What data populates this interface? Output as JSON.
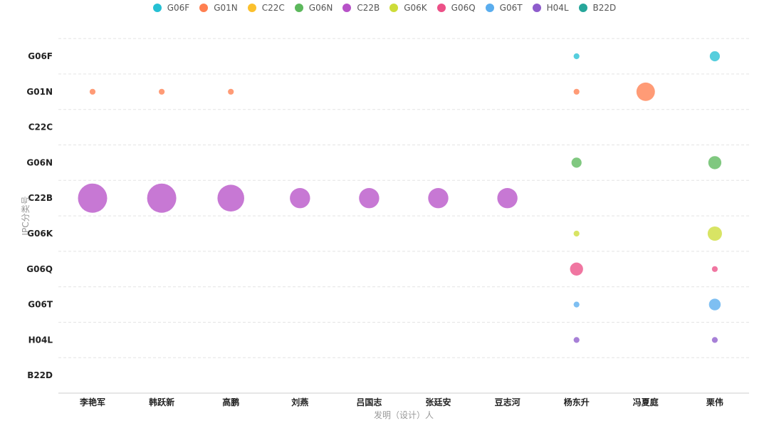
{
  "chart_data": {
    "type": "scatter",
    "subtype": "bubble",
    "xlabel": "发明（设计）人",
    "ylabel": "IPC分类号",
    "x_categories": [
      "李艳军",
      "韩跃新",
      "高鹏",
      "刘燕",
      "吕国志",
      "张廷安",
      "豆志河",
      "杨东升",
      "冯夏庭",
      "栗伟"
    ],
    "y_categories": [
      "G06F",
      "G01N",
      "C22C",
      "G06N",
      "C22B",
      "G06K",
      "G06Q",
      "G06T",
      "H04L",
      "B22D"
    ],
    "legend_position": "top-center",
    "grid": "horizontal-dashed",
    "series": [
      {
        "name": "G06F",
        "color": "#26C0D3",
        "points": [
          {
            "x": "杨东升",
            "size": 1
          },
          {
            "x": "栗伟",
            "size": 3
          }
        ]
      },
      {
        "name": "G01N",
        "color": "#FF7F50",
        "points": [
          {
            "x": "李艳军",
            "size": 1
          },
          {
            "x": "韩跃新",
            "size": 1
          },
          {
            "x": "高鹏",
            "size": 1
          },
          {
            "x": "杨东升",
            "size": 1
          },
          {
            "x": "冯夏庭",
            "size": 10
          }
        ]
      },
      {
        "name": "C22C",
        "color": "#FBC02D",
        "points": []
      },
      {
        "name": "G06N",
        "color": "#5CB85C",
        "points": [
          {
            "x": "杨东升",
            "size": 3
          },
          {
            "x": "栗伟",
            "size": 5
          }
        ]
      },
      {
        "name": "C22B",
        "color": "#B752C8",
        "points": [
          {
            "x": "李艳军",
            "size": 25
          },
          {
            "x": "韩跃新",
            "size": 25
          },
          {
            "x": "高鹏",
            "size": 21
          },
          {
            "x": "刘燕",
            "size": 12
          },
          {
            "x": "吕国志",
            "size": 12
          },
          {
            "x": "张廷安",
            "size": 12
          },
          {
            "x": "豆志河",
            "size": 12
          }
        ]
      },
      {
        "name": "G06K",
        "color": "#CDDC39",
        "points": [
          {
            "x": "杨东升",
            "size": 1
          },
          {
            "x": "栗伟",
            "size": 6
          }
        ]
      },
      {
        "name": "G06Q",
        "color": "#EC5087",
        "points": [
          {
            "x": "杨东升",
            "size": 5
          },
          {
            "x": "栗伟",
            "size": 1
          }
        ]
      },
      {
        "name": "G06T",
        "color": "#5AADEE",
        "points": [
          {
            "x": "杨东升",
            "size": 1
          },
          {
            "x": "栗伟",
            "size": 4
          }
        ]
      },
      {
        "name": "H04L",
        "color": "#8E5CCC",
        "points": [
          {
            "x": "杨东升",
            "size": 1
          },
          {
            "x": "栗伟",
            "size": 1
          }
        ]
      },
      {
        "name": "B22D",
        "color": "#26A69A",
        "points": []
      }
    ]
  }
}
